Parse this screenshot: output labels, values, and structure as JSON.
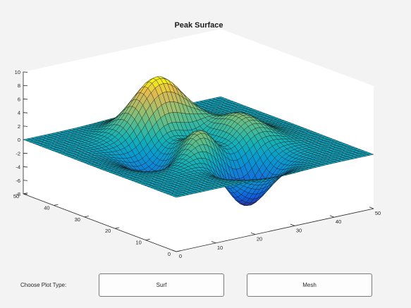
{
  "chart_data": {
    "type": "surface",
    "title": "Peak Surface",
    "function": "peaks",
    "x": {
      "ticks": [
        0,
        10,
        20,
        30,
        40,
        50
      ],
      "range": [
        0,
        50
      ]
    },
    "y": {
      "ticks": [
        0,
        10,
        20,
        30,
        40,
        50
      ],
      "range": [
        0,
        50
      ]
    },
    "z": {
      "ticks": [
        -8,
        -6,
        -4,
        -2,
        0,
        2,
        4,
        6,
        8,
        10
      ],
      "range": [
        -8,
        10
      ]
    },
    "grid_points": 49,
    "colormap": "parula"
  },
  "controls": {
    "label": "Choose Plot Type:",
    "buttons": [
      "Surf",
      "Mesh"
    ]
  }
}
